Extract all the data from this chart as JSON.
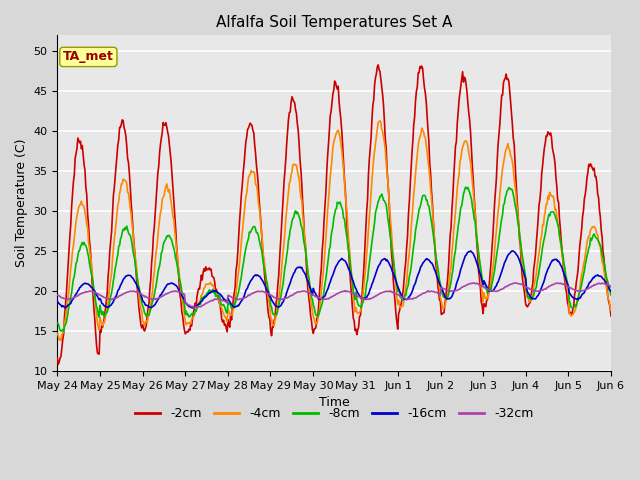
{
  "title": "Alfalfa Soil Temperatures Set A",
  "xlabel": "Time",
  "ylabel": "Soil Temperature (C)",
  "ylim": [
    10,
    52
  ],
  "yticks": [
    10,
    15,
    20,
    25,
    30,
    35,
    40,
    45,
    50
  ],
  "colors": {
    "-2cm": "#cc0000",
    "-4cm": "#ff8800",
    "-8cm": "#00bb00",
    "-16cm": "#0000cc",
    "-32cm": "#aa44aa"
  },
  "legend_labels": [
    "-2cm",
    "-4cm",
    "-8cm",
    "-16cm",
    "-32cm"
  ],
  "annotation_text": "TA_met",
  "annotation_color": "#990000",
  "annotation_bg": "#ffff99",
  "background_color": "#e8e8e8",
  "grid_color": "#ffffff",
  "title_fontsize": 11,
  "axis_fontsize": 9,
  "tick_fontsize": 8,
  "legend_fontsize": 9,
  "x_tick_labels": [
    "May 24",
    "May 25",
    "May 26",
    "May 27",
    "May 28",
    "May 29",
    "May 30",
    "May 31",
    "Jun 1",
    "Jun 2",
    "Jun 3",
    "Jun 4",
    "Jun 5",
    "Jun 6"
  ],
  "x_tick_positions": [
    0,
    1,
    2,
    3,
    4,
    5,
    6,
    7,
    8,
    9,
    10,
    11,
    12,
    13
  ],
  "n_days": 13,
  "pts_per_day": 48
}
